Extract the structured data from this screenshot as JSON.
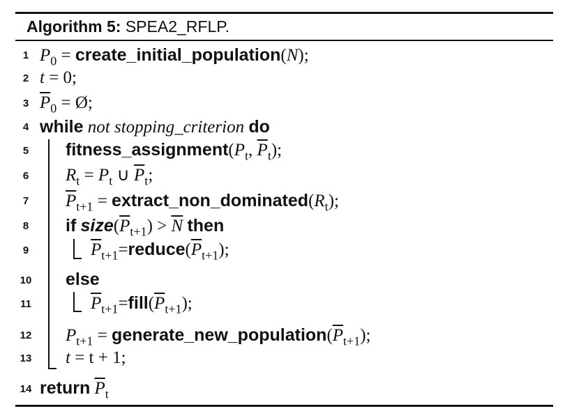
{
  "algorithm": {
    "title_label": "Algorithm 5:",
    "title_name": "SPEA2_RFLP.",
    "lines": [
      {
        "no": "1",
        "text_var": "P",
        "text_sub": "0",
        "eq": " = ",
        "fn": "create_initial_population",
        "open": "(",
        "arg": "N",
        "close": ");"
      },
      {
        "no": "2",
        "var": "t",
        "rest": " = 0;"
      },
      {
        "no": "3",
        "var": "P",
        "sub": "0",
        "rest": " = Ø;"
      },
      {
        "no": "4",
        "kw1": "while",
        "cond": " not stopping_criterion ",
        "kw2": "do"
      },
      {
        "no": "5",
        "fn": "fitness_assignment",
        "a1": "P",
        "a1s": "t",
        "sep": ", ",
        "a2": "P",
        "a2s": "t",
        "close": ");"
      },
      {
        "no": "6",
        "v1": "R",
        "v1s": "t",
        "eq": " = ",
        "v2": "P",
        "v2s": "t",
        "op": " ∪ ",
        "v3": "P",
        "v3s": "t",
        "end": ";"
      },
      {
        "no": "7",
        "v1": "P",
        "v1s": "t+1",
        "eq": " = ",
        "fn": "extract_non_dominated",
        "open": "(",
        "arg": "R",
        "args": "t",
        "close": ");"
      },
      {
        "no": "8",
        "kw1": "if",
        "fn": "size",
        "open": "(",
        "arg": "P",
        "args": "t+1",
        "mid": ") > ",
        "n": "N",
        "kw2": "then"
      },
      {
        "no": "9",
        "v1": "P",
        "v1s": "t+1",
        "eq": "=",
        "fn": "reduce",
        "open": "(",
        "arg": "P",
        "args": "t+1",
        "close": ");"
      },
      {
        "no": "10",
        "kw1": "else"
      },
      {
        "no": "11",
        "v1": "P",
        "v1s": "t+1",
        "eq": "=",
        "fn": "fill",
        "open": "(",
        "arg": "P",
        "args": "t+1",
        "close": ");"
      },
      {
        "no": "12",
        "v1": "P",
        "v1s": "t+1",
        "eq": " = ",
        "fn": "generate_new_population",
        "open": "(",
        "arg": "P",
        "args": "t+1",
        "close": ");"
      },
      {
        "no": "13",
        "v1": "t",
        "rest": " = t + 1;"
      },
      {
        "no": "14",
        "kw1": "return",
        "v1": "P",
        "v1s": "t"
      }
    ]
  }
}
